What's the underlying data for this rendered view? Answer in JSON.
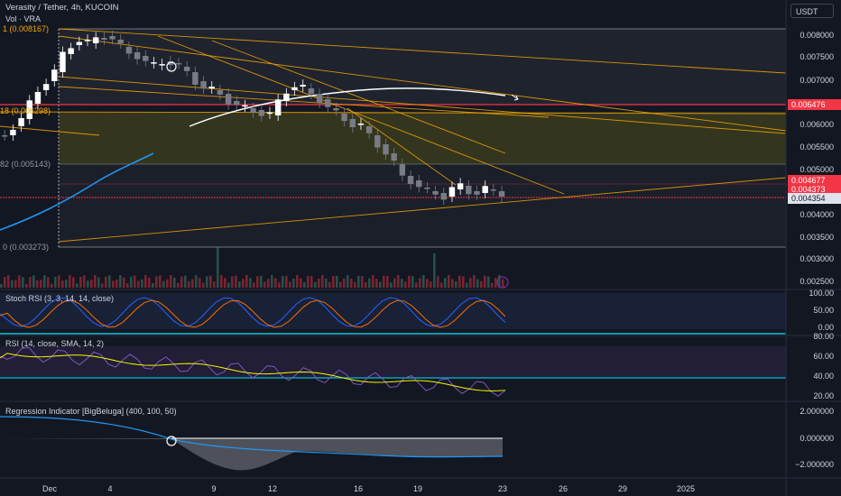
{
  "header": {
    "symbol_line": "Verasity / Tether, 4h, KUCOIN",
    "volume_line": "Vol · VRA",
    "currency_button": "USDT"
  },
  "fib_labels": [
    {
      "text": "1 (0.008167)"
    },
    {
      "text": "18 (0.006298)"
    },
    {
      "text": "82 (0.005143)"
    },
    {
      "text": "0 (0.003273)"
    }
  ],
  "price_axis": [
    "0.008000",
    "0.007500",
    "0.007000",
    "0.006000",
    "0.005500",
    "0.005000",
    "0.004000",
    "0.003500",
    "0.003000",
    "0.002500"
  ],
  "price_tags": [
    {
      "text": "0.006476",
      "color": "#f23645"
    },
    {
      "text": "0.004677",
      "color": "#f23645"
    },
    {
      "text": "0.004373",
      "color": "#f23645"
    },
    {
      "text": "0.004354",
      "color": "#e0e3eb"
    }
  ],
  "indicators": {
    "stoch_rsi": {
      "title": "Stoch RSI (3, 3, 14, 14, close)",
      "ticks": [
        "100.00",
        "50.00",
        "0.00"
      ]
    },
    "rsi": {
      "title": "RSI (14, close, SMA, 14, 2)",
      "ticks": [
        "80.00",
        "60.00",
        "40.00",
        "20.00"
      ]
    },
    "regression": {
      "title": "Regression Indicator [BigBeluga] (400, 100, 50)",
      "ticks": [
        "2.000000",
        "0.000000",
        "−2.000000"
      ]
    }
  },
  "time_axis": [
    "Dec",
    "4",
    "9",
    "12",
    "16",
    "19",
    "23",
    "26",
    "29",
    "2025"
  ],
  "colors": {
    "background": "#131722",
    "candle_up": "#ffffff",
    "candle_down": "#787b86",
    "fib_lines": "#f7a600",
    "resistance": "#f23645",
    "ma_blue": "#2196f3",
    "stoch_k": "#2962ff",
    "stoch_d": "#ff6d00",
    "rsi_line": "#7e57c2",
    "rsi_sma": "#f7f700",
    "accent_cyan": "#00bcd4"
  }
}
